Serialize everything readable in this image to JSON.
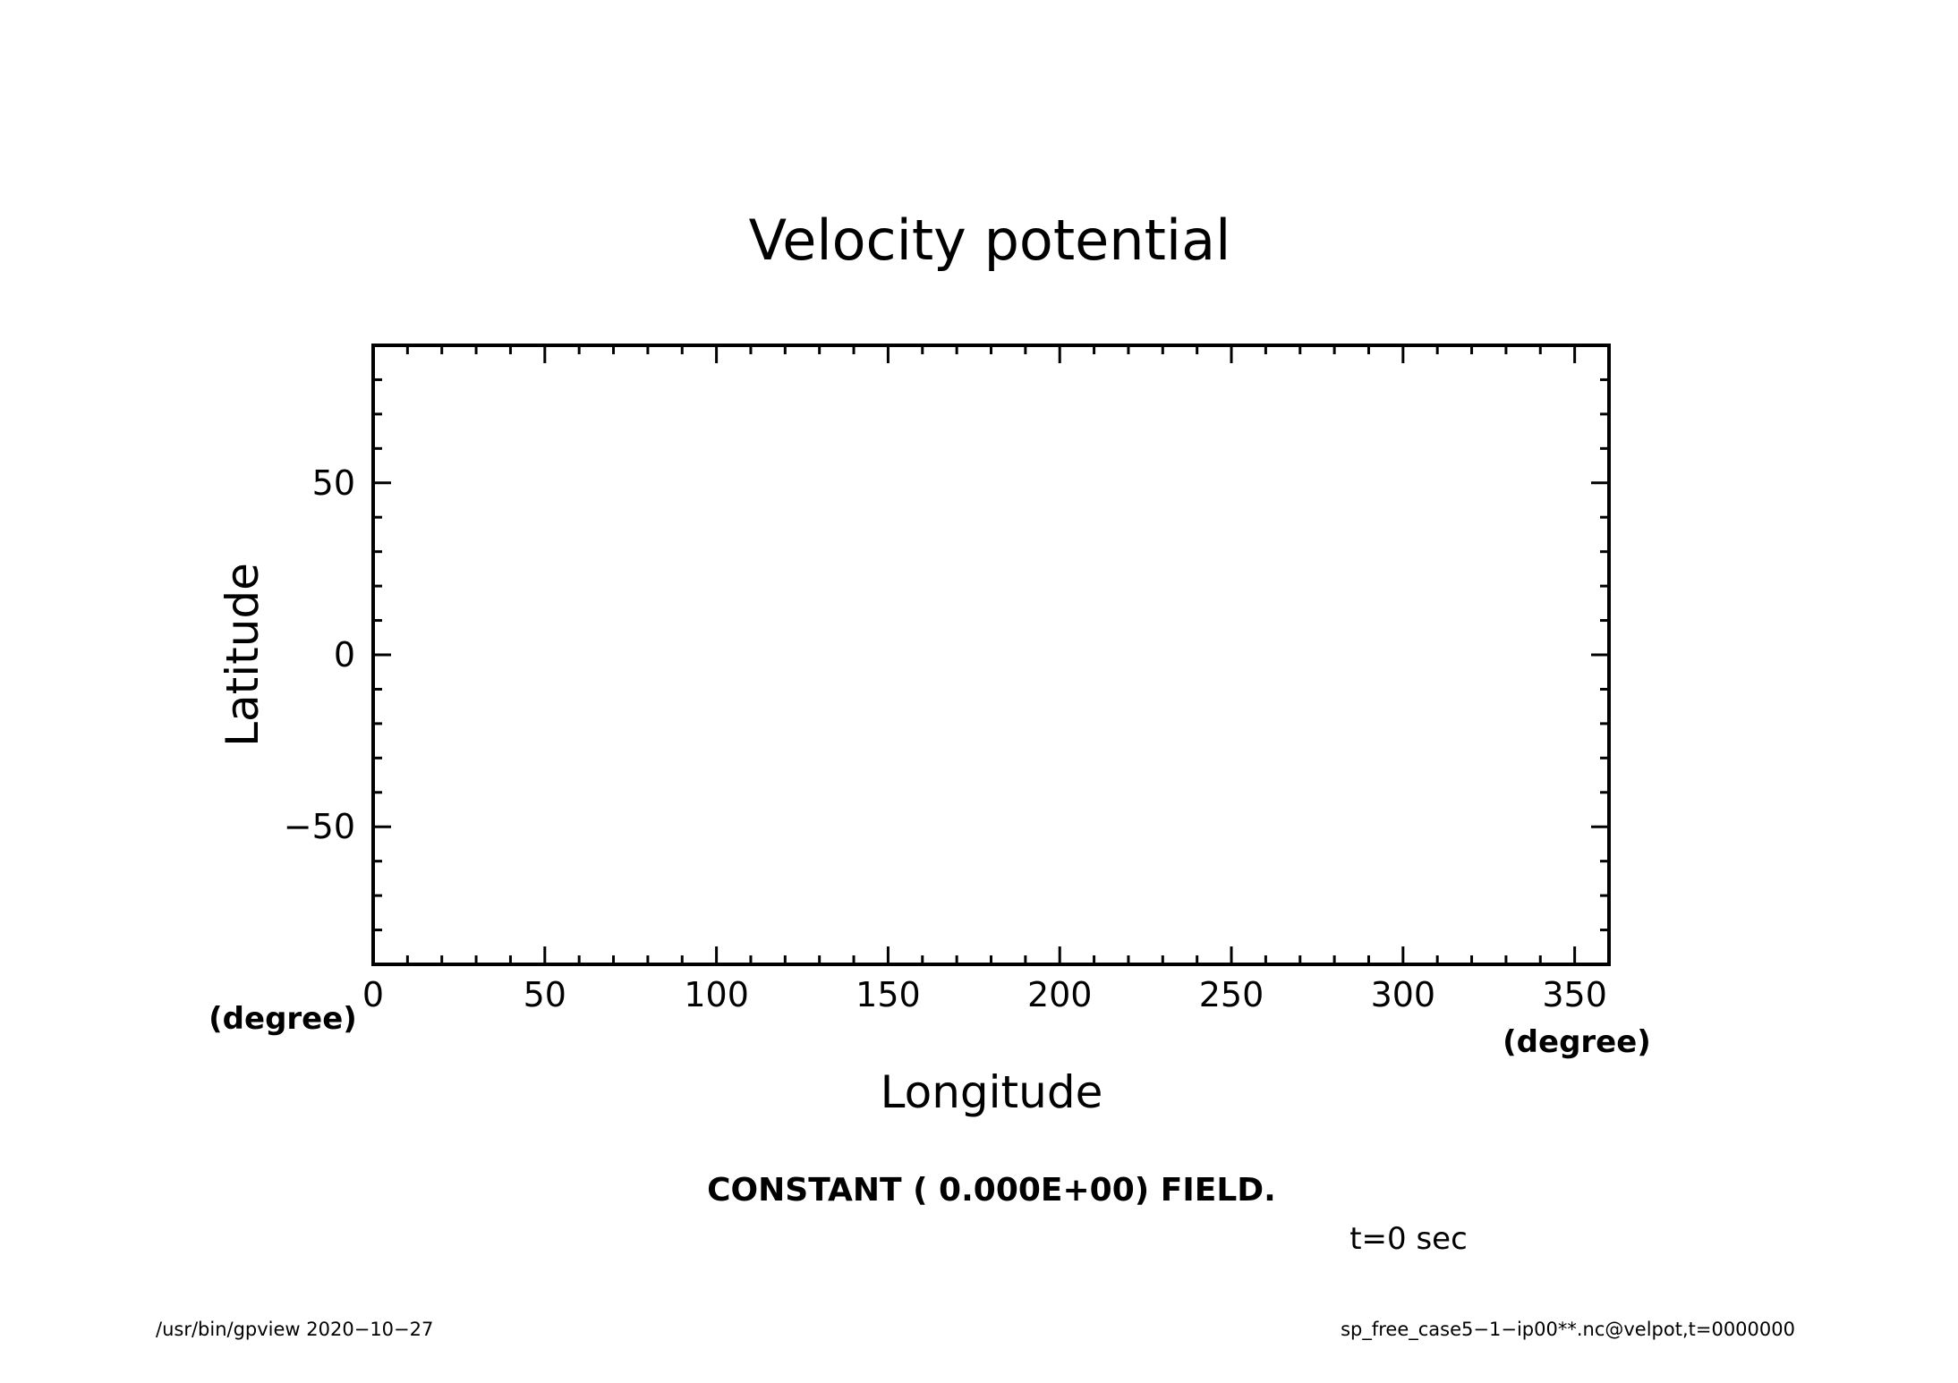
{
  "chart_data": {
    "type": "contour",
    "title": "Velocity potential",
    "xlabel": "Longitude",
    "ylabel": "Latitude",
    "x_unit": "(degree)",
    "y_unit": "(degree)",
    "xlim": [
      0,
      360
    ],
    "ylim": [
      -90,
      90
    ],
    "x_ticks": [
      0,
      50,
      100,
      150,
      200,
      250,
      300,
      350
    ],
    "x_tick_labels": [
      "0",
      "50",
      "100",
      "150",
      "200",
      "250",
      "300",
      "350"
    ],
    "x_minor_step": 10,
    "y_ticks": [
      -50,
      0,
      50
    ],
    "y_tick_labels": [
      "−50",
      "0",
      "50"
    ],
    "y_minor_step": 10,
    "grid": false,
    "field_value": 0.0,
    "series": []
  },
  "annotations": {
    "constant_field": "CONSTANT ( 0.000E+00) FIELD.",
    "time": "t=0 sec"
  },
  "footer": {
    "left": "/usr/bin/gpview   2020−10−27",
    "right": "sp_free_case5−1−ip00**.nc@velpot,t=0000000"
  }
}
